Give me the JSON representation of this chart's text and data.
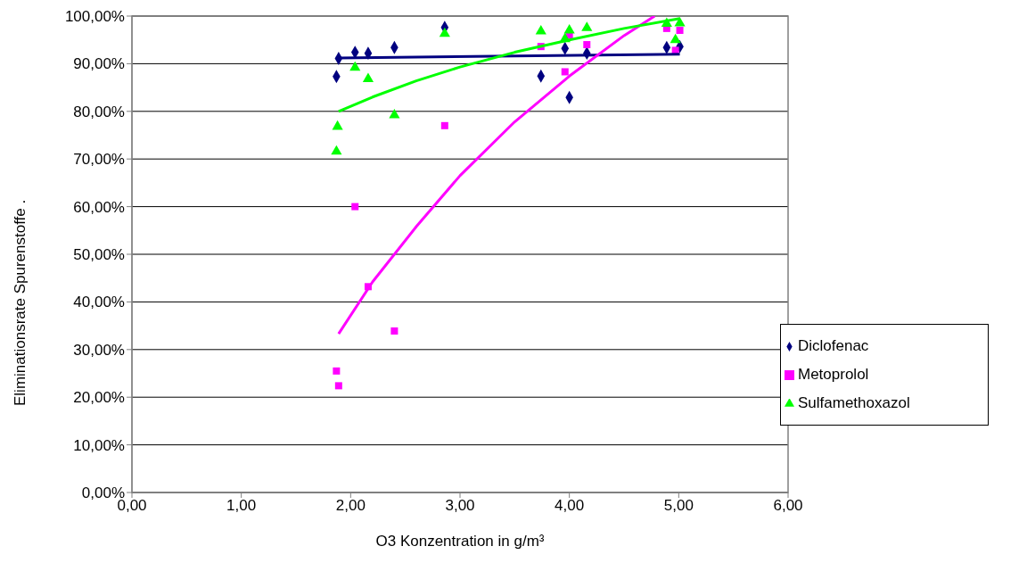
{
  "chart_data": {
    "type": "scatter",
    "xlabel": "O3 Konzentration in g/m³",
    "ylabel": "Eliminationsrate Spurenstoffe .",
    "xlim": [
      0,
      6
    ],
    "xticks": [
      {
        "value": 0,
        "label": "0,00"
      },
      {
        "value": 1,
        "label": "1,00"
      },
      {
        "value": 2,
        "label": "2,00"
      },
      {
        "value": 3,
        "label": "3,00"
      },
      {
        "value": 4,
        "label": "4,00"
      },
      {
        "value": 5,
        "label": "5,00"
      },
      {
        "value": 6,
        "label": "6,00"
      }
    ],
    "ylim": [
      0,
      100
    ],
    "yticks": [
      {
        "value": 0,
        "label": "0,00%"
      },
      {
        "value": 10,
        "label": "10,00%"
      },
      {
        "value": 20,
        "label": "20,00%"
      },
      {
        "value": 30,
        "label": "30,00%"
      },
      {
        "value": 40,
        "label": "40,00%"
      },
      {
        "value": 50,
        "label": "50,00%"
      },
      {
        "value": 60,
        "label": "60,00%"
      },
      {
        "value": 70,
        "label": "70,00%"
      },
      {
        "value": 80,
        "label": "80,00%"
      },
      {
        "value": 90,
        "label": "90,00%"
      },
      {
        "value": 100,
        "label": "100,00%"
      }
    ],
    "grid": "y",
    "legend": "bottom right",
    "series": [
      {
        "name": "Diclofenac",
        "color": "#000080",
        "marker": "diamond",
        "x": [
          1.89,
          1.87,
          2.04,
          2.16,
          2.4,
          2.86,
          3.74,
          3.96,
          4.0,
          4.16,
          4.89,
          5.01
        ],
        "values": [
          91.1,
          87.3,
          92.4,
          92.2,
          93.4,
          97.6,
          87.4,
          93.2,
          82.9,
          92.2,
          93.4,
          93.6
        ]
      },
      {
        "name": "Metoprolol",
        "color": "#ff00ff",
        "marker": "square",
        "x": [
          1.87,
          1.89,
          2.04,
          2.16,
          2.4,
          2.86,
          3.74,
          3.96,
          4.0,
          4.16,
          4.89,
          4.97,
          5.01
        ],
        "values": [
          25.5,
          22.4,
          60.0,
          43.2,
          33.9,
          77.0,
          93.6,
          88.3,
          96.0,
          94.0,
          97.4,
          92.8,
          97.0
        ]
      },
      {
        "name": "Sulfamethoxazol",
        "color": "#00ff00",
        "marker": "triangle",
        "x": [
          1.88,
          1.87,
          2.04,
          2.16,
          2.4,
          2.86,
          3.74,
          3.96,
          4.0,
          4.16,
          4.89,
          4.97,
          5.01
        ],
        "values": [
          76.8,
          71.6,
          89.2,
          86.8,
          79.2,
          96.3,
          96.8,
          95.2,
          97.0,
          97.5,
          98.4,
          95.0,
          98.5
        ]
      },
      {
        "type": "line",
        "color": "#000080",
        "x": [
          1.89,
          5.01
        ],
        "values": [
          91.2,
          92.0
        ]
      },
      {
        "type": "line",
        "color": "#ff00ff",
        "x": [
          1.89,
          2.2,
          2.6,
          3.0,
          3.5,
          4.0,
          4.5,
          4.78
        ],
        "values": [
          33.3,
          44.2,
          55.8,
          66.5,
          77.8,
          87.4,
          95.9,
          100.0
        ]
      },
      {
        "type": "line",
        "color": "#00ff00",
        "x": [
          1.89,
          2.2,
          2.6,
          3.0,
          3.5,
          4.0,
          4.5,
          5.01
        ],
        "values": [
          80.0,
          83.0,
          86.4,
          89.3,
          92.4,
          95.0,
          97.4,
          99.5
        ]
      }
    ]
  }
}
